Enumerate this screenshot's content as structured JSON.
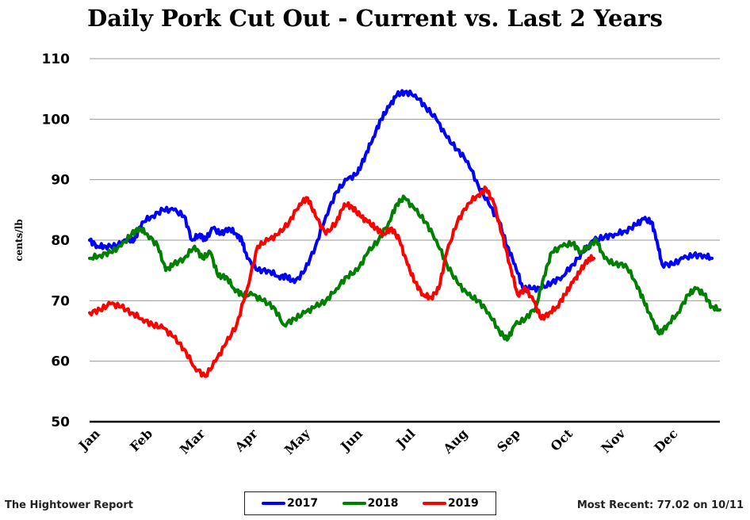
{
  "chart_data": {
    "type": "line",
    "title": "Daily Pork Cut Out - Current vs. Last 2 Years",
    "ylabel": "cents/lb",
    "xlabel": "",
    "ylim": [
      50,
      110
    ],
    "yticks": [
      50,
      60,
      70,
      80,
      90,
      100,
      110
    ],
    "categories": [
      "Jan",
      "Feb",
      "Mar",
      "Apr",
      "May",
      "Jun",
      "Jul",
      "Aug",
      "Sep",
      "Oct",
      "Nov",
      "Dec"
    ],
    "xlim": [
      1,
      13
    ],
    "grid": true,
    "legend_position": "bottom-center",
    "series": [
      {
        "name": "2017",
        "color": "#0000ff",
        "points": [
          [
            1.0,
            80
          ],
          [
            1.15,
            79
          ],
          [
            1.3,
            79
          ],
          [
            1.5,
            79
          ],
          [
            1.7,
            80
          ],
          [
            1.85,
            80
          ],
          [
            2.0,
            83
          ],
          [
            2.2,
            84
          ],
          [
            2.4,
            85
          ],
          [
            2.6,
            85
          ],
          [
            2.8,
            84
          ],
          [
            2.95,
            80
          ],
          [
            3.1,
            81
          ],
          [
            3.2,
            80
          ],
          [
            3.35,
            82
          ],
          [
            3.5,
            81
          ],
          [
            3.65,
            82
          ],
          [
            3.8,
            81
          ],
          [
            3.9,
            80
          ],
          [
            4.0,
            77
          ],
          [
            4.2,
            75
          ],
          [
            4.4,
            75
          ],
          [
            4.6,
            74
          ],
          [
            4.75,
            74
          ],
          [
            4.9,
            73
          ],
          [
            5.1,
            75
          ],
          [
            5.3,
            79
          ],
          [
            5.5,
            84
          ],
          [
            5.7,
            88
          ],
          [
            5.9,
            90
          ],
          [
            6.1,
            91
          ],
          [
            6.25,
            94
          ],
          [
            6.4,
            97
          ],
          [
            6.55,
            100
          ],
          [
            6.7,
            102
          ],
          [
            6.85,
            104
          ],
          [
            7.0,
            104.5
          ],
          [
            7.2,
            104
          ],
          [
            7.4,
            102
          ],
          [
            7.6,
            100
          ],
          [
            7.8,
            97
          ],
          [
            8.0,
            95
          ],
          [
            8.2,
            93
          ],
          [
            8.4,
            89
          ],
          [
            8.6,
            86
          ],
          [
            8.8,
            83
          ],
          [
            8.95,
            79
          ],
          [
            9.1,
            76
          ],
          [
            9.25,
            72
          ],
          [
            9.4,
            72
          ],
          [
            9.6,
            72
          ],
          [
            9.8,
            73
          ],
          [
            10.0,
            74
          ],
          [
            10.2,
            76
          ],
          [
            10.4,
            78
          ],
          [
            10.6,
            80
          ],
          [
            10.8,
            80.5
          ],
          [
            11.0,
            81
          ],
          [
            11.2,
            81.5
          ],
          [
            11.4,
            82.5
          ],
          [
            11.55,
            83.5
          ],
          [
            11.7,
            83
          ],
          [
            11.8,
            80
          ],
          [
            11.9,
            76
          ],
          [
            12.1,
            76
          ],
          [
            12.3,
            77
          ],
          [
            12.5,
            77.5
          ],
          [
            12.7,
            77.5
          ],
          [
            12.85,
            77
          ]
        ]
      },
      {
        "name": "2018",
        "color": "#008000",
        "points": [
          [
            1.0,
            77
          ],
          [
            1.2,
            77.5
          ],
          [
            1.4,
            78
          ],
          [
            1.6,
            79
          ],
          [
            1.8,
            81
          ],
          [
            1.95,
            82
          ],
          [
            2.1,
            81
          ],
          [
            2.3,
            79
          ],
          [
            2.45,
            75
          ],
          [
            2.6,
            76
          ],
          [
            2.8,
            77
          ],
          [
            3.0,
            79
          ],
          [
            3.15,
            77
          ],
          [
            3.3,
            78
          ],
          [
            3.45,
            74
          ],
          [
            3.6,
            74
          ],
          [
            3.75,
            72
          ],
          [
            3.9,
            71
          ],
          [
            4.1,
            71
          ],
          [
            4.3,
            70
          ],
          [
            4.5,
            69
          ],
          [
            4.7,
            66
          ],
          [
            4.9,
            67
          ],
          [
            5.1,
            68
          ],
          [
            5.3,
            69
          ],
          [
            5.5,
            70
          ],
          [
            5.7,
            72
          ],
          [
            5.9,
            74
          ],
          [
            6.1,
            75
          ],
          [
            6.3,
            78
          ],
          [
            6.5,
            80
          ],
          [
            6.7,
            83
          ],
          [
            6.85,
            86
          ],
          [
            7.0,
            87
          ],
          [
            7.2,
            85
          ],
          [
            7.4,
            83
          ],
          [
            7.6,
            80
          ],
          [
            7.8,
            76
          ],
          [
            8.0,
            73
          ],
          [
            8.2,
            71
          ],
          [
            8.4,
            70
          ],
          [
            8.6,
            68
          ],
          [
            8.8,
            65
          ],
          [
            8.95,
            63.5
          ],
          [
            9.1,
            66
          ],
          [
            9.3,
            67
          ],
          [
            9.5,
            69
          ],
          [
            9.65,
            74
          ],
          [
            9.8,
            78
          ],
          [
            10.0,
            79
          ],
          [
            10.2,
            79.5
          ],
          [
            10.35,
            78
          ],
          [
            10.5,
            79
          ],
          [
            10.65,
            80
          ],
          [
            10.8,
            77
          ],
          [
            11.0,
            76
          ],
          [
            11.2,
            76
          ],
          [
            11.4,
            73
          ],
          [
            11.55,
            70
          ],
          [
            11.7,
            67
          ],
          [
            11.85,
            64.5
          ],
          [
            12.0,
            66
          ],
          [
            12.2,
            68
          ],
          [
            12.4,
            71
          ],
          [
            12.55,
            72
          ],
          [
            12.7,
            71
          ],
          [
            12.85,
            69
          ],
          [
            13.0,
            68.5
          ]
        ]
      },
      {
        "name": "2019",
        "color": "#ff0000",
        "points": [
          [
            1.0,
            68
          ],
          [
            1.2,
            68.5
          ],
          [
            1.4,
            69.5
          ],
          [
            1.6,
            69
          ],
          [
            1.8,
            68
          ],
          [
            2.0,
            67
          ],
          [
            2.2,
            66
          ],
          [
            2.4,
            65.5
          ],
          [
            2.6,
            64
          ],
          [
            2.8,
            62
          ],
          [
            3.0,
            59
          ],
          [
            3.2,
            57.5
          ],
          [
            3.4,
            60
          ],
          [
            3.6,
            63
          ],
          [
            3.8,
            66
          ],
          [
            4.0,
            72
          ],
          [
            4.2,
            79
          ],
          [
            4.4,
            80
          ],
          [
            4.6,
            81
          ],
          [
            4.8,
            83
          ],
          [
            5.0,
            86
          ],
          [
            5.15,
            87
          ],
          [
            5.3,
            84
          ],
          [
            5.5,
            81
          ],
          [
            5.7,
            83
          ],
          [
            5.85,
            86
          ],
          [
            6.0,
            85.5
          ],
          [
            6.15,
            84
          ],
          [
            6.3,
            83
          ],
          [
            6.45,
            82
          ],
          [
            6.6,
            81
          ],
          [
            6.75,
            82
          ],
          [
            6.9,
            80
          ],
          [
            7.05,
            76
          ],
          [
            7.2,
            73
          ],
          [
            7.35,
            71
          ],
          [
            7.5,
            70.5
          ],
          [
            7.65,
            72
          ],
          [
            7.8,
            78
          ],
          [
            8.0,
            83
          ],
          [
            8.2,
            86
          ],
          [
            8.4,
            87.5
          ],
          [
            8.55,
            88.5
          ],
          [
            8.7,
            86
          ],
          [
            8.85,
            81
          ],
          [
            9.0,
            76
          ],
          [
            9.15,
            71
          ],
          [
            9.3,
            72
          ],
          [
            9.45,
            70
          ],
          [
            9.6,
            67
          ],
          [
            9.75,
            68
          ],
          [
            9.9,
            69
          ],
          [
            10.05,
            71
          ],
          [
            10.2,
            73
          ],
          [
            10.35,
            75
          ],
          [
            10.5,
            77
          ],
          [
            10.6,
            77
          ]
        ]
      }
    ],
    "legend": [
      "2017",
      "2018",
      "2019"
    ]
  },
  "footer": {
    "source": "The Hightower Report",
    "recent": "Most Recent: 77.02 on 10/11"
  }
}
